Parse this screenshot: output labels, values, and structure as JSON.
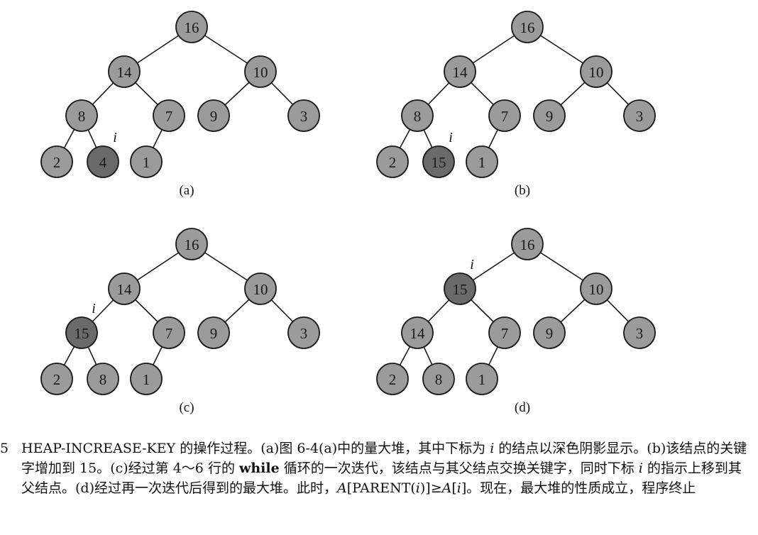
{
  "panels": [
    {
      "id": "a",
      "label": "(a)",
      "pointer_label": "i",
      "nodes": [
        {
          "id": "n1",
          "key": "16"
        },
        {
          "id": "n2",
          "key": "14"
        },
        {
          "id": "n3",
          "key": "10"
        },
        {
          "id": "n4",
          "key": "8"
        },
        {
          "id": "n5",
          "key": "7"
        },
        {
          "id": "n6",
          "key": "9"
        },
        {
          "id": "n7",
          "key": "3"
        },
        {
          "id": "n8",
          "key": "2"
        },
        {
          "id": "n9",
          "key": "4"
        },
        {
          "id": "n10",
          "key": "1"
        }
      ],
      "edges": [
        [
          "n1",
          "n2"
        ],
        [
          "n1",
          "n3"
        ],
        [
          "n2",
          "n4"
        ],
        [
          "n2",
          "n5"
        ],
        [
          "n3",
          "n6"
        ],
        [
          "n3",
          "n7"
        ],
        [
          "n4",
          "n8"
        ],
        [
          "n4",
          "n9"
        ],
        [
          "n5",
          "n10"
        ]
      ],
      "highlighted": "n9"
    },
    {
      "id": "b",
      "label": "(b)",
      "pointer_label": "i",
      "nodes": [
        {
          "id": "n1",
          "key": "16"
        },
        {
          "id": "n2",
          "key": "14"
        },
        {
          "id": "n3",
          "key": "10"
        },
        {
          "id": "n4",
          "key": "8"
        },
        {
          "id": "n5",
          "key": "7"
        },
        {
          "id": "n6",
          "key": "9"
        },
        {
          "id": "n7",
          "key": "3"
        },
        {
          "id": "n8",
          "key": "2"
        },
        {
          "id": "n9",
          "key": "15"
        },
        {
          "id": "n10",
          "key": "1"
        }
      ],
      "edges": [
        [
          "n1",
          "n2"
        ],
        [
          "n1",
          "n3"
        ],
        [
          "n2",
          "n4"
        ],
        [
          "n2",
          "n5"
        ],
        [
          "n3",
          "n6"
        ],
        [
          "n3",
          "n7"
        ],
        [
          "n4",
          "n8"
        ],
        [
          "n4",
          "n9"
        ],
        [
          "n5",
          "n10"
        ]
      ],
      "highlighted": "n9"
    },
    {
      "id": "c",
      "label": "(c)",
      "pointer_label": "i",
      "nodes": [
        {
          "id": "n1",
          "key": "16"
        },
        {
          "id": "n2",
          "key": "14"
        },
        {
          "id": "n3",
          "key": "10"
        },
        {
          "id": "n4",
          "key": "15"
        },
        {
          "id": "n5",
          "key": "7"
        },
        {
          "id": "n6",
          "key": "9"
        },
        {
          "id": "n7",
          "key": "3"
        },
        {
          "id": "n8",
          "key": "2"
        },
        {
          "id": "n9",
          "key": "8"
        },
        {
          "id": "n10",
          "key": "1"
        }
      ],
      "edges": [
        [
          "n1",
          "n2"
        ],
        [
          "n1",
          "n3"
        ],
        [
          "n2",
          "n4"
        ],
        [
          "n2",
          "n5"
        ],
        [
          "n3",
          "n6"
        ],
        [
          "n3",
          "n7"
        ],
        [
          "n4",
          "n8"
        ],
        [
          "n4",
          "n9"
        ],
        [
          "n5",
          "n10"
        ]
      ],
      "highlighted": "n4"
    },
    {
      "id": "d",
      "label": "(d)",
      "pointer_label": "i",
      "nodes": [
        {
          "id": "n1",
          "key": "16"
        },
        {
          "id": "n2",
          "key": "15"
        },
        {
          "id": "n3",
          "key": "10"
        },
        {
          "id": "n4",
          "key": "14"
        },
        {
          "id": "n5",
          "key": "7"
        },
        {
          "id": "n6",
          "key": "9"
        },
        {
          "id": "n7",
          "key": "3"
        },
        {
          "id": "n8",
          "key": "2"
        },
        {
          "id": "n9",
          "key": "8"
        },
        {
          "id": "n10",
          "key": "1"
        }
      ],
      "edges": [
        [
          "n1",
          "n2"
        ],
        [
          "n1",
          "n3"
        ],
        [
          "n2",
          "n4"
        ],
        [
          "n2",
          "n5"
        ],
        [
          "n3",
          "n6"
        ],
        [
          "n3",
          "n7"
        ],
        [
          "n4",
          "n8"
        ],
        [
          "n4",
          "n9"
        ],
        [
          "n5",
          "n10"
        ]
      ],
      "highlighted": "n2"
    }
  ],
  "caption": {
    "number": "5",
    "part1": "HEAP-INCREASE-KEY 的操作过程。(a)图 6-4(a)中的量大堆，其中下标为 ",
    "var_i_1": "i",
    "part2": " 的结点以深色阴影显示。(b)该结点的关键字增加到 15。(c)经过第 4～6 行的 ",
    "keyword_while": "while",
    "part3": " 循环的一次迭代，该结点与其父结点交换关键字，同时下标 ",
    "var_i_2": "i",
    "part4": " 的指示上移到其父结点。(d)经过再一次迭代后得到的最大堆。此时，",
    "var_A_1": "A",
    "part5": "[PARENT(",
    "var_i_3": "i",
    "part6": ")]≥",
    "var_A_2": "A",
    "part7": "[",
    "var_i_4": "i",
    "part8": "]。现在，最大堆的性质成立，程序终止"
  }
}
